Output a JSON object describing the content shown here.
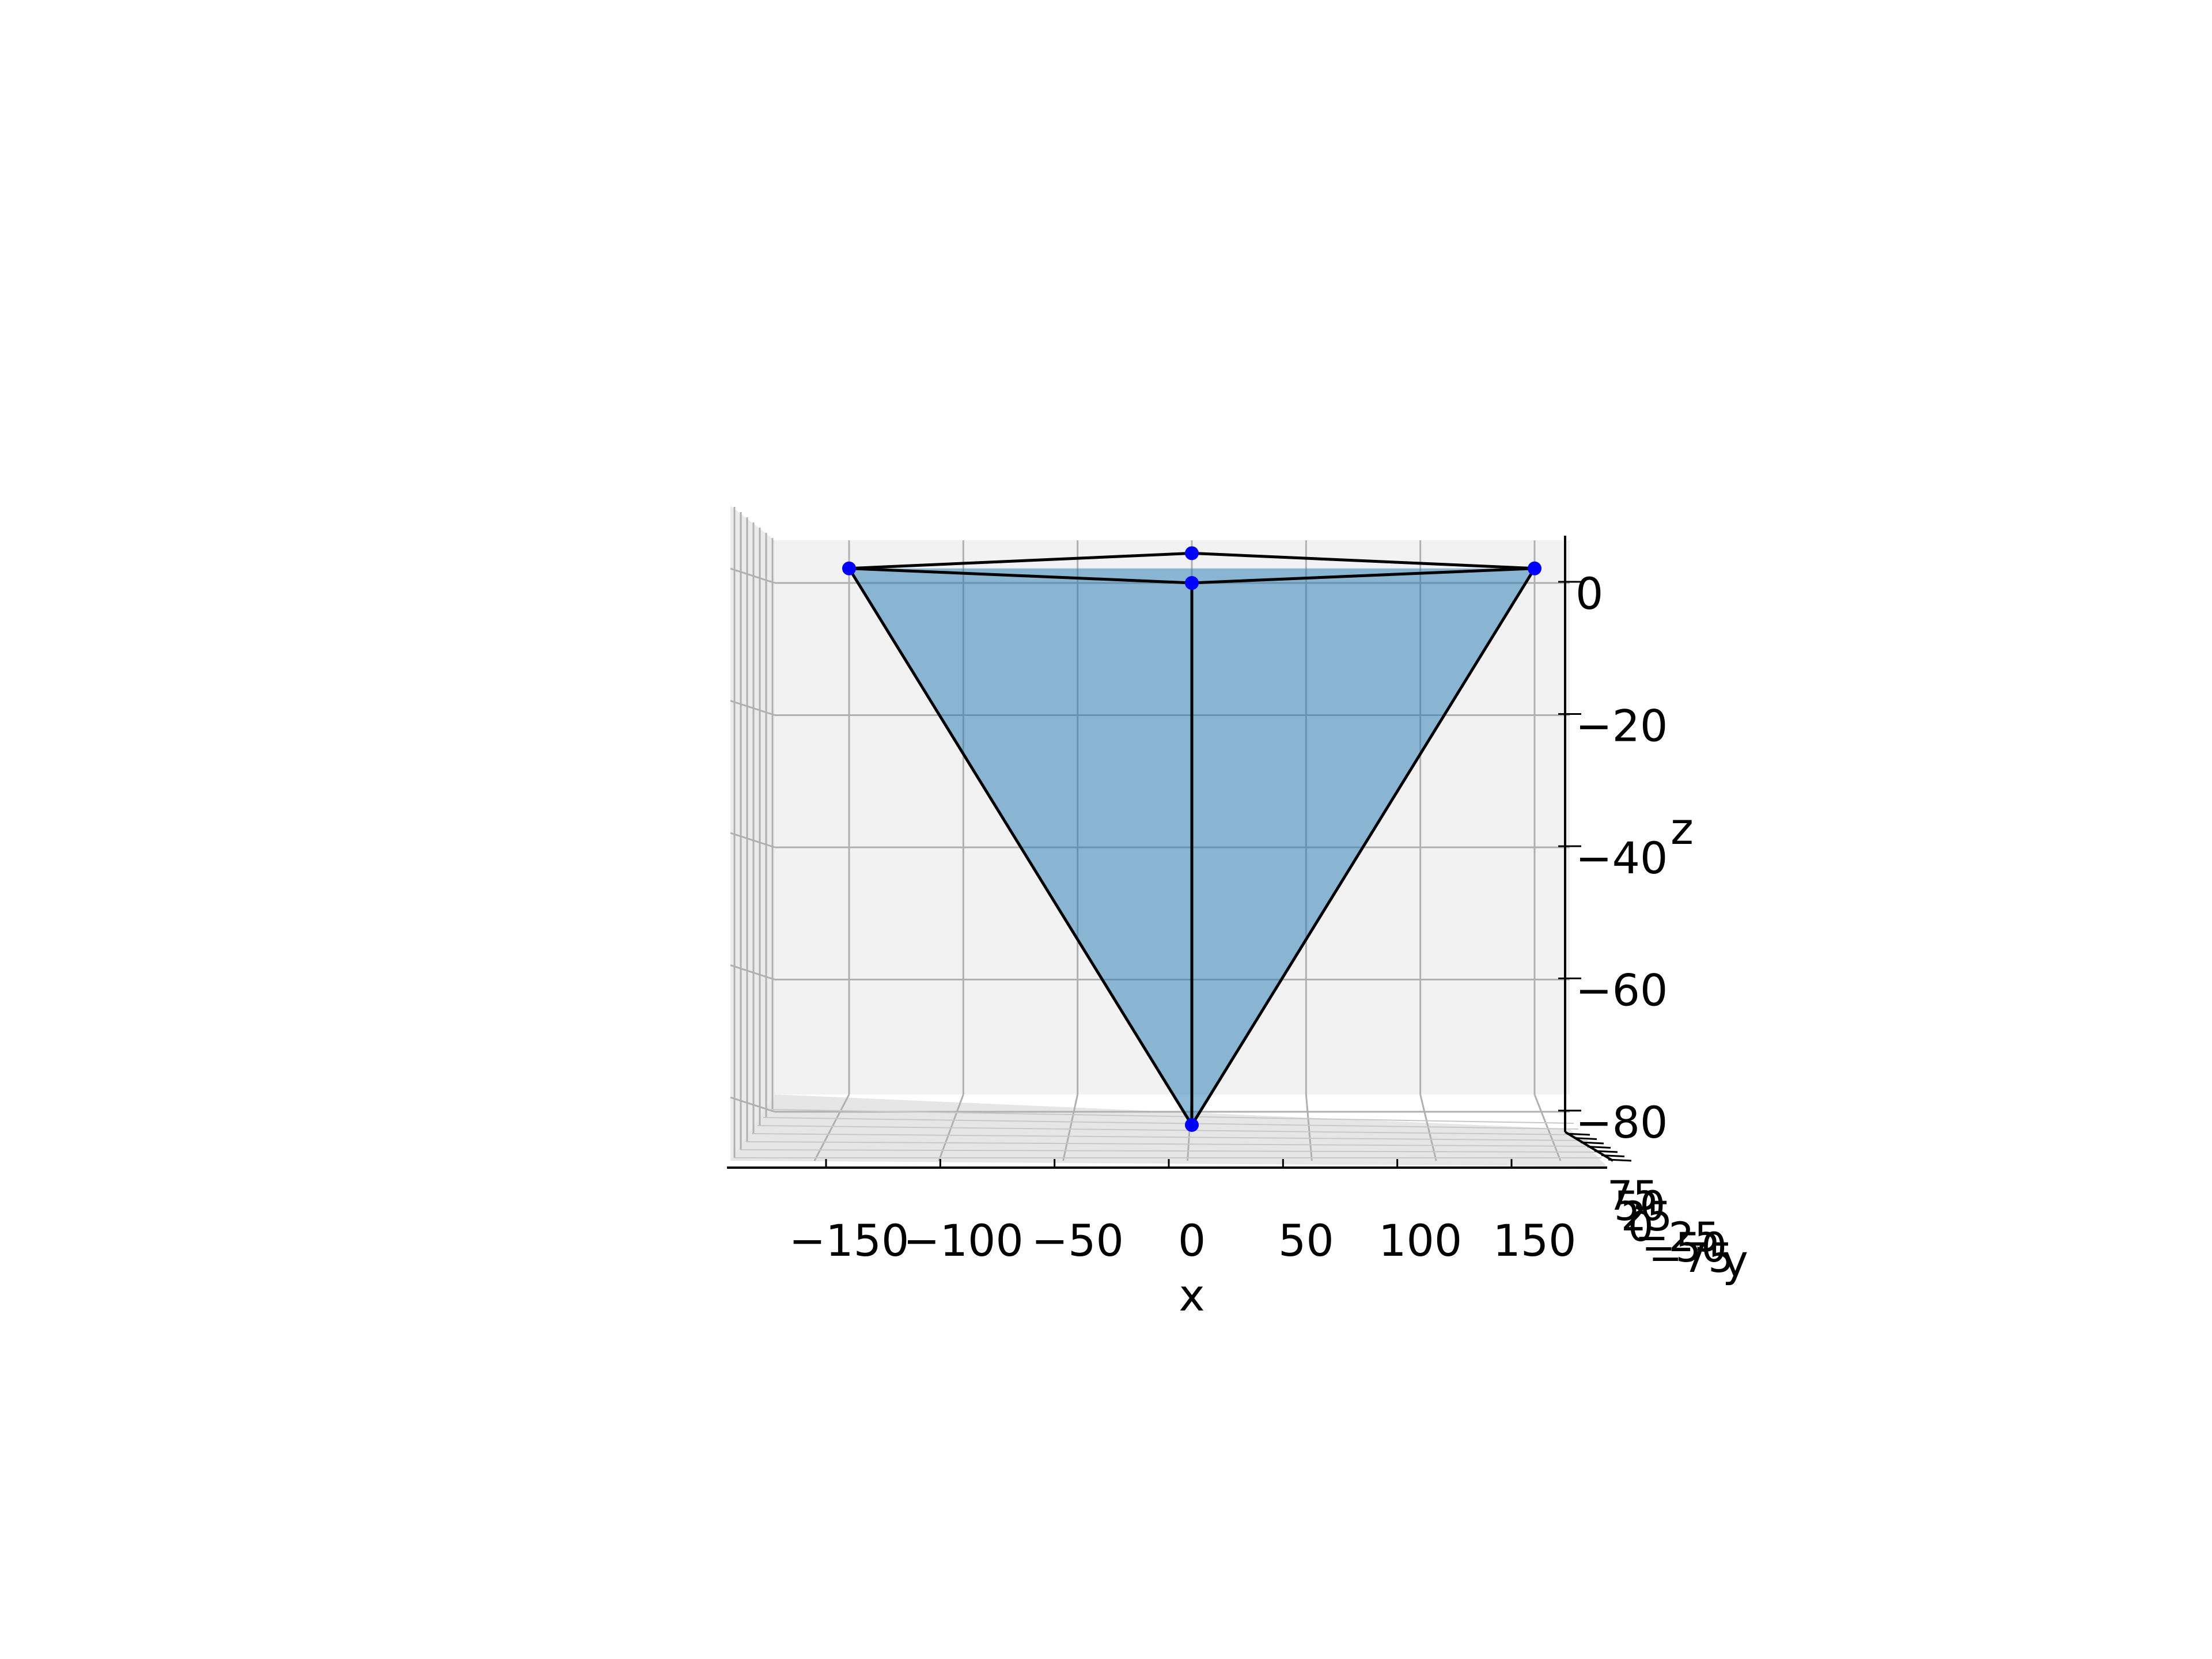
{
  "chart_data": {
    "type": "3d-surface",
    "xlabel": "x",
    "ylabel": "y",
    "zlabel": "z",
    "x_ticks": [
      "−150",
      "−100",
      "−50",
      "0",
      "50",
      "100",
      "150"
    ],
    "z_ticks": [
      "0",
      "−20",
      "−40",
      "−60",
      "−80"
    ],
    "y_ticks": [
      "75",
      "50",
      "25",
      "0",
      "−25",
      "−50",
      "−75"
    ],
    "xlim": [
      -175,
      175
    ],
    "zlim": [
      -85,
      6
    ],
    "grid": true,
    "vertices": [
      {
        "x": -150,
        "z": 2.2
      },
      {
        "x": 0,
        "z": 4.5
      },
      {
        "x": 150,
        "z": 2.2
      },
      {
        "x": 0,
        "z": 0
      },
      {
        "x": 0,
        "z": -82
      }
    ],
    "faces": [
      [
        0,
        4,
        2
      ]
    ],
    "edges": [
      [
        0,
        1
      ],
      [
        1,
        2
      ],
      [
        0,
        3
      ],
      [
        3,
        2
      ],
      [
        3,
        4
      ],
      [
        0,
        4
      ],
      [
        2,
        4
      ]
    ],
    "colors": {
      "face": "#1f77b4",
      "edge": "#000000",
      "vertex": "#0000ff",
      "pane": "#f2f2f2",
      "grid": "#b0b0b0"
    }
  }
}
